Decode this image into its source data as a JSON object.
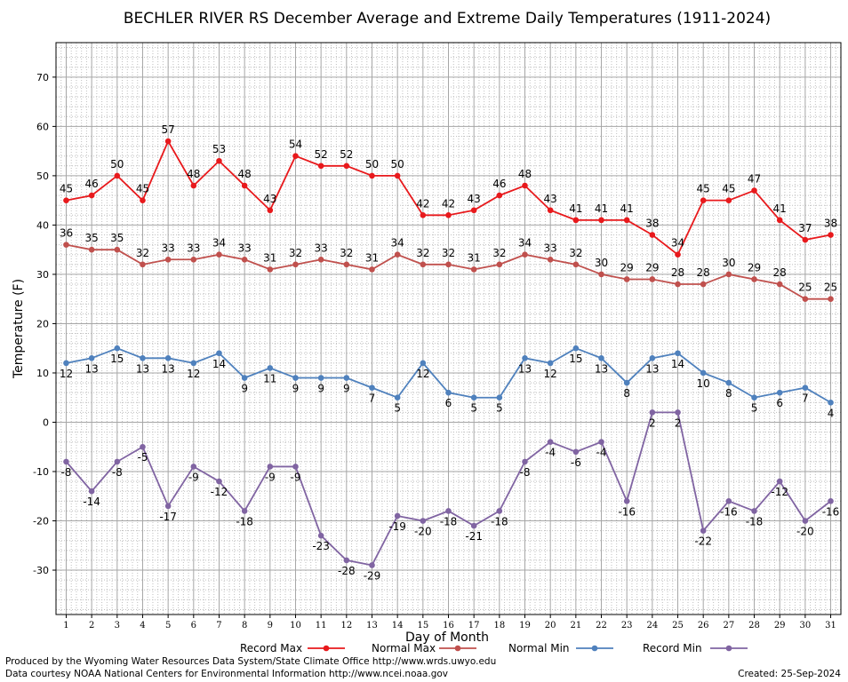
{
  "chart_data": {
    "type": "line",
    "title": "BECHLER RIVER RS December Average and Extreme Daily Temperatures (1911-2024)",
    "xlabel": "Day of Month",
    "ylabel": "Temperature (F)",
    "xlim": [
      0.6,
      31.4
    ],
    "ylim": [
      -39,
      77
    ],
    "yticks": [
      -30,
      -20,
      -10,
      0,
      10,
      20,
      30,
      40,
      50,
      60,
      70
    ],
    "x": [
      1,
      2,
      3,
      4,
      5,
      6,
      7,
      8,
      9,
      10,
      11,
      12,
      13,
      14,
      15,
      16,
      17,
      18,
      19,
      20,
      21,
      22,
      23,
      24,
      25,
      26,
      27,
      28,
      29,
      30,
      31
    ],
    "grid": true,
    "legend_position": "bottom",
    "series": [
      {
        "name": "Record Max",
        "color": "#e8191c",
        "label_side": "above",
        "values": [
          45,
          46,
          50,
          45,
          57,
          48,
          53,
          48,
          43,
          54,
          52,
          52,
          50,
          50,
          42,
          42,
          43,
          46,
          48,
          43,
          41,
          41,
          41,
          38,
          34,
          45,
          45,
          47,
          41,
          37,
          38
        ]
      },
      {
        "name": "Normal Max",
        "color": "#c0504d",
        "label_side": "above",
        "values": [
          36,
          35,
          35,
          32,
          33,
          33,
          34,
          33,
          31,
          32,
          33,
          32,
          31,
          34,
          32,
          32,
          31,
          32,
          34,
          33,
          32,
          30,
          29,
          29,
          28,
          28,
          30,
          29,
          28,
          25,
          25
        ]
      },
      {
        "name": "Normal Min",
        "color": "#4f81bd",
        "label_side": "below",
        "values": [
          12,
          13,
          15,
          13,
          13,
          12,
          14,
          9,
          11,
          9,
          9,
          9,
          7,
          5,
          12,
          6,
          5,
          5,
          13,
          12,
          15,
          13,
          8,
          13,
          14,
          10,
          8,
          5,
          6,
          7,
          4
        ]
      },
      {
        "name": "Record Min",
        "color": "#8064a2",
        "label_side": "below",
        "values": [
          -8,
          -14,
          -8,
          -5,
          -17,
          -9,
          -12,
          -18,
          -9,
          -9,
          -23,
          -28,
          -29,
          -19,
          -20,
          -18,
          -21,
          -18,
          -8,
          -4,
          -6,
          -4,
          -16,
          2,
          2,
          -22,
          -16,
          -18,
          -12,
          -20,
          -16
        ]
      }
    ]
  },
  "footer": {
    "produced_by": "Produced by the Wyoming Water Resources Data System/State Climate Office http://www.wrds.uwyo.edu",
    "courtesy": "Data courtesy NOAA National Centers for Environmental Information http://www.ncei.noaa.gov",
    "created": "Created: 25-Sep-2024"
  }
}
